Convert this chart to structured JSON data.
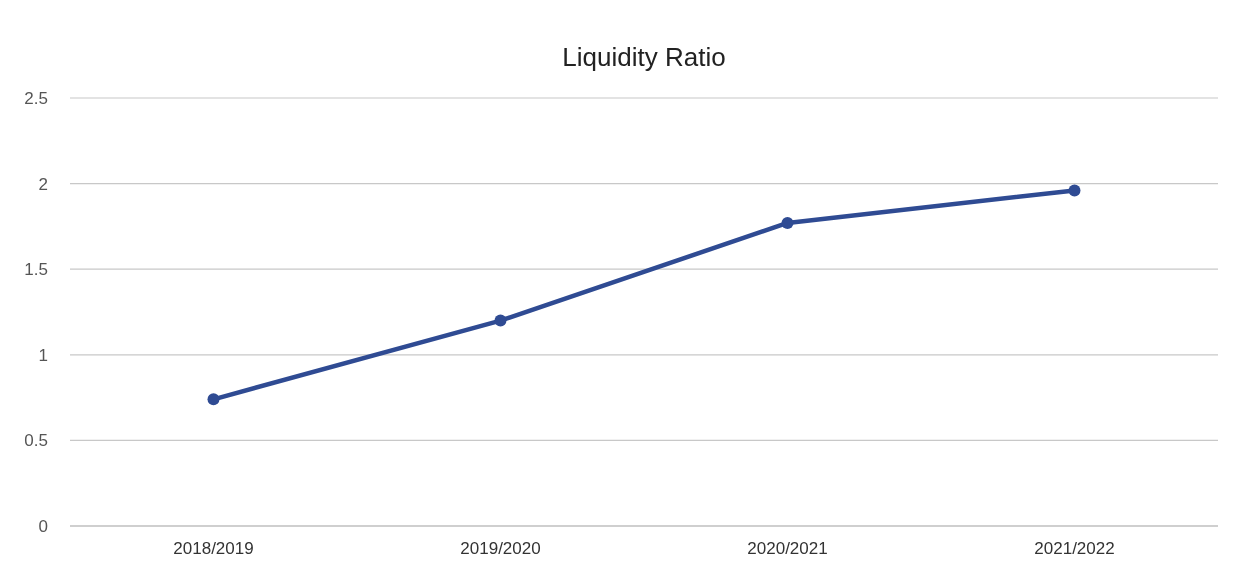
{
  "chart_data": {
    "type": "line",
    "title": "Liquidity Ratio",
    "categories": [
      "2018/2019",
      "2019/2020",
      "2020/2021",
      "2021/2022"
    ],
    "series": [
      {
        "color": "#2f4b93",
        "values": [
          0.74,
          1.2,
          1.77,
          1.96
        ]
      }
    ],
    "ylim": [
      0,
      2.5
    ],
    "yticks": [
      0,
      0.5,
      1,
      1.5,
      2,
      2.5
    ],
    "grid": "y",
    "marker": "circle",
    "line_style": "solid"
  }
}
